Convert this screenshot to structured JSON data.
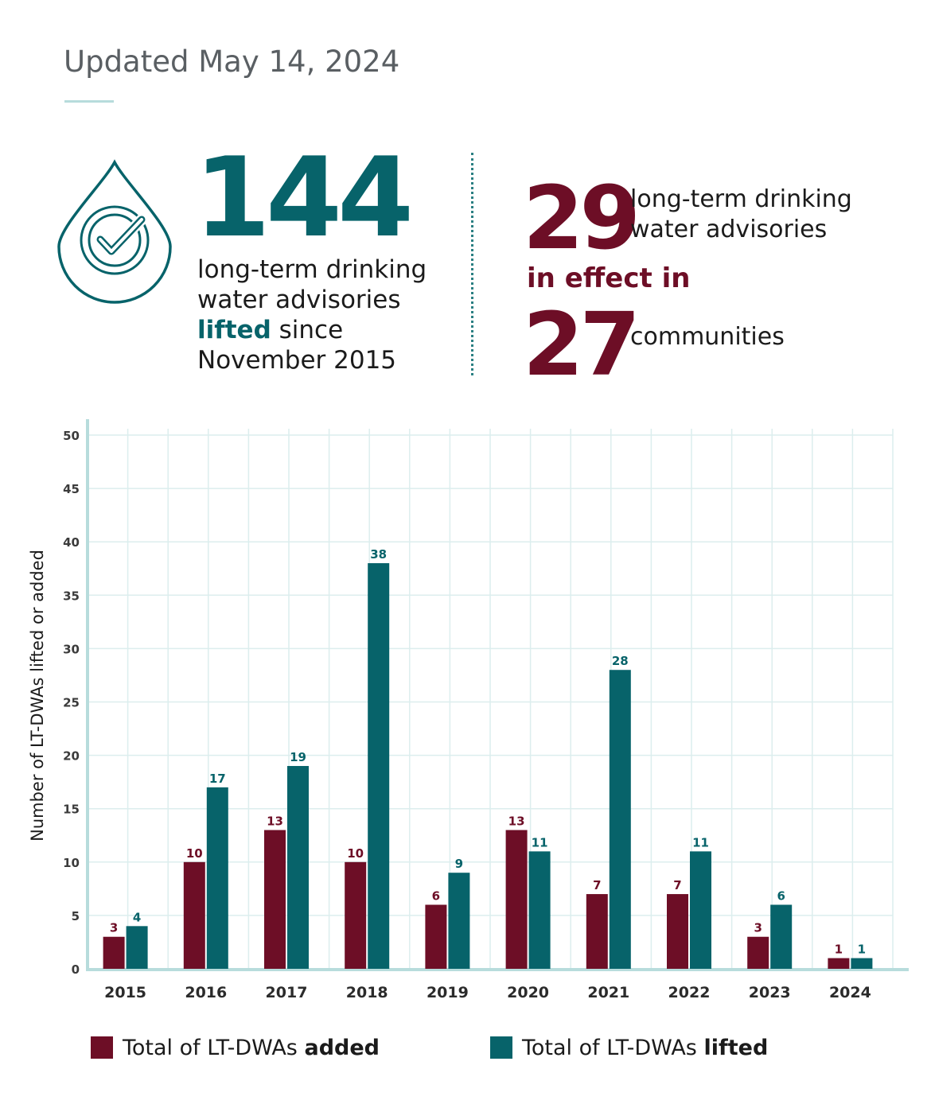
{
  "header": {
    "updated": "Updated May 14, 2024"
  },
  "stat_lifted": {
    "number": "144",
    "line1": "long-term drinking",
    "line2": "water advisories",
    "highlight": "lifted",
    "line3_rest": " since",
    "line4": "November 2015",
    "icon": "water-drop-check-icon"
  },
  "stat_in_effect": {
    "number": "29",
    "label_line1": "long-term drinking",
    "label_line2": "water advisories",
    "in_effect": "in effect in",
    "communities_number": "27",
    "communities_label": "communities"
  },
  "colors": {
    "added": "#6d0e26",
    "lifted": "#07636a",
    "grid": "#dceeee",
    "axis": "#b7dcdc"
  },
  "legend": {
    "added_prefix": "Total of LT-DWAs ",
    "added_bold": "added",
    "lifted_prefix": "Total of LT-DWAs ",
    "lifted_bold": "lifted"
  },
  "chart_data": {
    "type": "bar",
    "categories": [
      "2015",
      "2016",
      "2017",
      "2018",
      "2019",
      "2020",
      "2021",
      "2022",
      "2023",
      "2024"
    ],
    "series": [
      {
        "name": "Total of LT-DWAs added",
        "values": [
          3,
          10,
          13,
          10,
          6,
          13,
          7,
          7,
          3,
          1
        ]
      },
      {
        "name": "Total of LT-DWAs lifted",
        "values": [
          4,
          17,
          19,
          38,
          9,
          11,
          28,
          11,
          6,
          1
        ]
      }
    ],
    "ylabel": "Number of LT-DWAs lifted or added",
    "xlabel": "",
    "ylim": [
      0,
      50
    ],
    "yticks": [
      0,
      5,
      10,
      15,
      20,
      25,
      30,
      35,
      40,
      45,
      50
    ],
    "grid": true,
    "legend_position": "bottom"
  }
}
